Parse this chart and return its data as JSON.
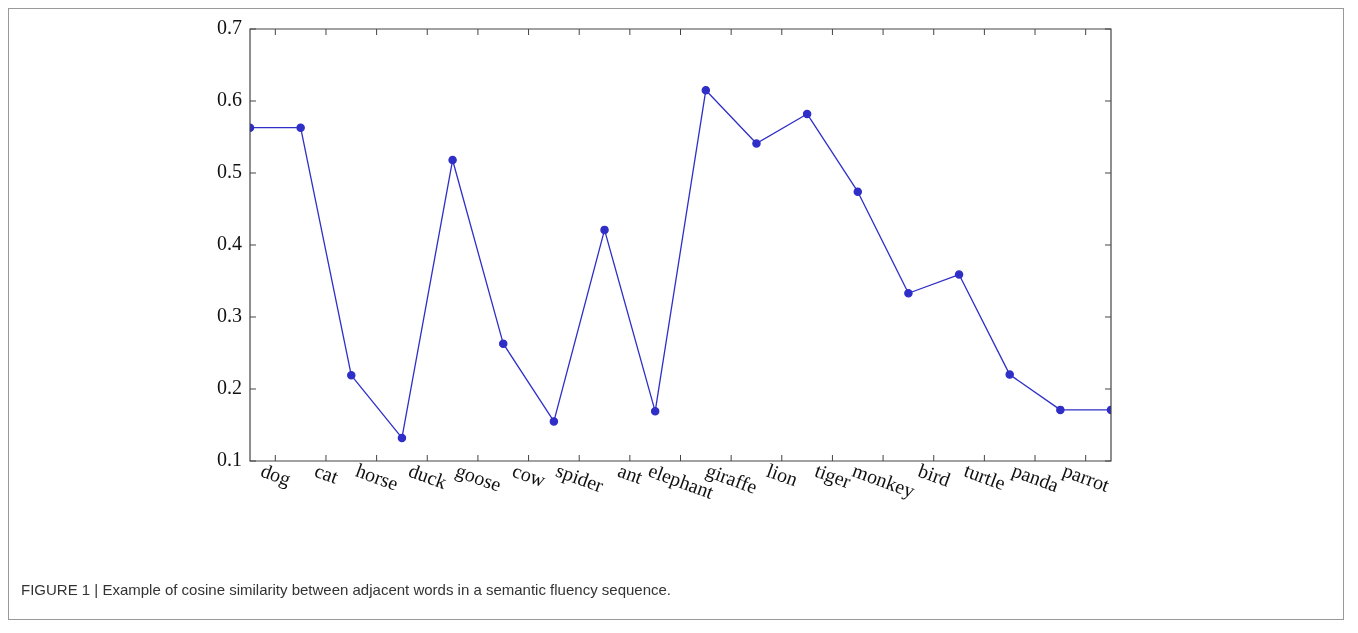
{
  "chart_data": {
    "type": "line",
    "categories": [
      null,
      "dog",
      null,
      "cat",
      null,
      "horse",
      null,
      "duck",
      null,
      "goose",
      null,
      "cow",
      null,
      "spider",
      null,
      "ant",
      null,
      "elephant",
      null,
      "giraffe",
      null,
      "lion",
      null,
      "tiger",
      null,
      "monkey",
      null,
      "bird",
      null,
      "turtle",
      null,
      "panda",
      null,
      "parrot",
      null
    ],
    "ylim": [
      0.1,
      0.7
    ],
    "yticks": [
      0.1,
      0.2,
      0.3,
      0.4,
      0.5,
      0.6,
      0.7
    ],
    "series": [
      {
        "color": "#2f2fc8",
        "values": [
          0.563,
          null,
          0.563,
          null,
          0.219,
          null,
          0.132,
          null,
          0.518,
          null,
          0.263,
          null,
          0.155,
          null,
          0.421,
          null,
          0.169,
          null,
          0.615,
          null,
          0.541,
          null,
          0.582,
          null,
          0.474,
          null,
          0.333,
          null,
          0.359,
          null,
          0.22,
          null,
          0.171,
          null,
          0.171
        ]
      }
    ],
    "marker": "circle",
    "line_style": "solid",
    "annotations": [
      "FIGURE 1 | Example of cosine similarity between adjacent words in a semantic fluency sequence."
    ]
  }
}
